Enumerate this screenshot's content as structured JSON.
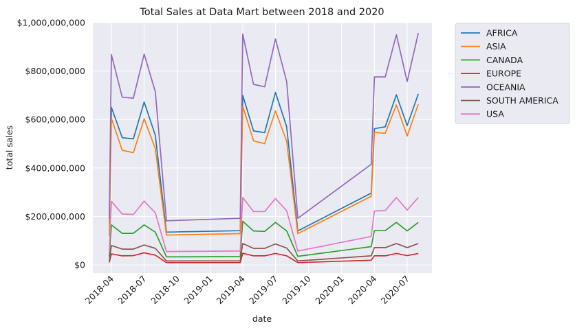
{
  "chart_data": {
    "type": "line",
    "title": "Total Sales at Data Mart between 2018 and 2020",
    "xlabel": "date",
    "ylabel": "total sales",
    "ylim": [
      0,
      1000000000
    ],
    "x_tick_labels": [
      "2018-04",
      "2018-07",
      "2018-10",
      "2019-01",
      "2019-04",
      "2019-07",
      "2019-10",
      "2020-01",
      "2020-04",
      "2020-07"
    ],
    "y_tick_labels": [
      "$0",
      "$200,000,000",
      "$400,000,000",
      "$600,000,000",
      "$800,000,000",
      "$1,000,000,000"
    ],
    "x": [
      "2018-03-26",
      "2018-04",
      "2018-05",
      "2018-06",
      "2018-07",
      "2018-08",
      "2018-09",
      "2019-03-25",
      "2019-04",
      "2019-05",
      "2019-06",
      "2019-07",
      "2019-08",
      "2019-09",
      "2020-03-23",
      "2020-04",
      "2020-05",
      "2020-06",
      "2020-07",
      "2020-08"
    ],
    "grid": true,
    "legend_position": "outside-right",
    "series": [
      {
        "name": "AFRICA",
        "color": "#1f77b4",
        "values": [
          170000000,
          650000000,
          525000000,
          520000000,
          672000000,
          535000000,
          135000000,
          141000000,
          700000000,
          553000000,
          546000000,
          712000000,
          570000000,
          140000000,
          296000000,
          562000000,
          570000000,
          702000000,
          575000000,
          706000000
        ]
      },
      {
        "name": "ASIA",
        "color": "#ff7f0e",
        "values": [
          120000000,
          605000000,
          473000000,
          463000000,
          603000000,
          480000000,
          123000000,
          129000000,
          655000000,
          512000000,
          500000000,
          636000000,
          510000000,
          129000000,
          283000000,
          547000000,
          543000000,
          660000000,
          532000000,
          663000000
        ]
      },
      {
        "name": "CANADA",
        "color": "#2ca02c",
        "values": [
          33000000,
          165000000,
          130000000,
          130000000,
          165000000,
          135000000,
          33000000,
          34000000,
          180000000,
          140000000,
          138000000,
          175000000,
          140000000,
          35000000,
          75000000,
          141000000,
          141000000,
          175000000,
          140000000,
          175000000
        ]
      },
      {
        "name": "EUROPE",
        "color": "#d62728",
        "values": [
          10000000,
          45000000,
          37000000,
          38000000,
          50000000,
          40000000,
          9000000,
          9000000,
          48000000,
          37000000,
          37000000,
          47000000,
          37000000,
          9000000,
          19000000,
          37000000,
          37000000,
          47000000,
          38000000,
          47000000
        ]
      },
      {
        "name": "OCEANIA",
        "color": "#9467bd",
        "values": [
          190000000,
          868000000,
          692000000,
          688000000,
          870000000,
          715000000,
          182000000,
          192000000,
          953000000,
          745000000,
          735000000,
          933000000,
          757000000,
          192000000,
          415000000,
          776000000,
          776000000,
          950000000,
          757000000,
          957000000
        ]
      },
      {
        "name": "SOUTH AMERICA",
        "color": "#8c564b",
        "values": [
          15000000,
          80000000,
          65000000,
          65000000,
          82000000,
          68000000,
          16000000,
          16000000,
          88000000,
          68000000,
          68000000,
          86000000,
          69000000,
          16000000,
          37000000,
          71000000,
          71000000,
          88000000,
          71000000,
          88000000
        ]
      },
      {
        "name": "USA",
        "color": "#e377c2",
        "values": [
          55000000,
          262000000,
          210000000,
          208000000,
          263000000,
          215000000,
          55000000,
          57000000,
          278000000,
          220000000,
          220000000,
          274000000,
          223000000,
          57000000,
          117000000,
          222000000,
          224000000,
          278000000,
          226000000,
          278000000
        ]
      }
    ]
  }
}
